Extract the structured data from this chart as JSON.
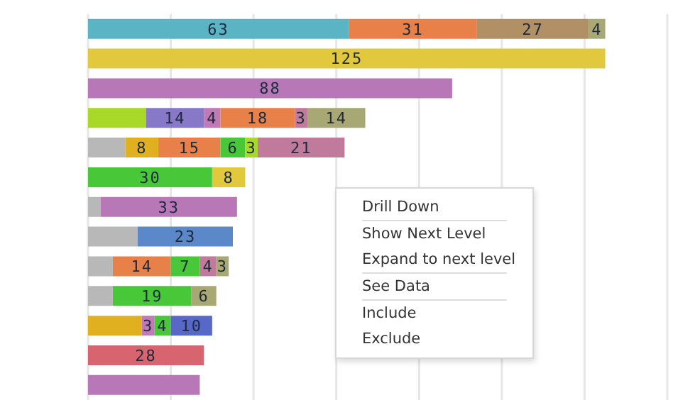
{
  "chart_data": {
    "type": "bar",
    "orientation": "horizontal",
    "stacked": true,
    "categories": [
      null,
      null,
      null,
      null,
      null,
      null,
      null,
      null,
      null,
      null,
      null,
      null,
      null
    ],
    "series": [
      {
        "values": [
          63,
          125,
          88,
          14,
          9,
          30,
          3,
          12,
          6,
          6,
          13,
          28,
          27
        ],
        "colors": [
          "#5ab4c4",
          "#e2c83c",
          "#b878b8",
          "#a8d828",
          "#b8b8b8",
          "#48c838",
          "#b8b8b8",
          "#b8b8b8",
          "#b8b8b8",
          "#b8b8b8",
          "#e0b020",
          "#d86470",
          "#b878b8"
        ],
        "value_labels": [
          "63",
          "125",
          "88",
          null,
          null,
          "30",
          null,
          null,
          null,
          null,
          null,
          "28",
          null
        ]
      },
      {
        "values": [
          31,
          null,
          null,
          14,
          8,
          8,
          33,
          23,
          14,
          19,
          3,
          null,
          null
        ],
        "colors": [
          "#e8804a",
          null,
          null,
          "#8878c8",
          "#e0b020",
          "#e2c83c",
          "#b878b8",
          "#5a88c8",
          "#e8804a",
          "#48c838",
          "#c07ab8",
          null,
          null
        ],
        "value_labels": [
          "31",
          null,
          null,
          "14",
          "8",
          "8",
          "33",
          "23",
          "14",
          "19",
          "3",
          null,
          null
        ]
      },
      {
        "values": [
          27,
          null,
          null,
          4,
          15,
          null,
          null,
          null,
          7,
          6,
          4,
          null,
          null
        ],
        "colors": [
          "#b09064",
          null,
          null,
          "#c07ab8",
          "#e8804a",
          null,
          null,
          null,
          "#48c838",
          "#a8a874",
          "#48c838",
          null,
          null
        ],
        "value_labels": [
          "27",
          null,
          null,
          "4",
          "15",
          null,
          null,
          null,
          "7",
          "6",
          "4",
          null,
          null
        ]
      },
      {
        "values": [
          4,
          null,
          null,
          18,
          6,
          null,
          null,
          null,
          4,
          null,
          10,
          null,
          null
        ],
        "colors": [
          "#a8a874",
          null,
          null,
          "#e8804a",
          "#48c838",
          null,
          null,
          null,
          "#c07a9c",
          null,
          "#5868c8",
          null,
          null
        ],
        "value_labels": [
          "4",
          null,
          null,
          "18",
          "6",
          null,
          null,
          null,
          "4",
          null,
          "10",
          null,
          null
        ]
      },
      {
        "values": [
          null,
          null,
          null,
          3,
          3,
          null,
          null,
          null,
          3,
          null,
          null,
          null,
          null
        ],
        "colors": [
          null,
          null,
          null,
          "#c07a9c",
          "#a8d828",
          null,
          null,
          null,
          "#a8a874",
          null,
          null,
          null,
          null
        ],
        "value_labels": [
          null,
          null,
          null,
          "3",
          "3",
          null,
          null,
          null,
          "3",
          null,
          null,
          null,
          null
        ]
      },
      {
        "values": [
          null,
          null,
          null,
          14,
          21,
          null,
          null,
          null,
          null,
          null,
          null,
          null,
          null
        ],
        "colors": [
          null,
          null,
          null,
          "#a8a874",
          "#c07a9c",
          null,
          null,
          null,
          null,
          null,
          null,
          null,
          null
        ],
        "value_labels": [
          null,
          null,
          null,
          "14",
          "21",
          null,
          null,
          null,
          null,
          null,
          null,
          null,
          null
        ]
      }
    ],
    "xlim": [
      0,
      140
    ],
    "grid": "x",
    "annotations": [
      "Drill Down",
      "Show Next Level",
      "Expand to next level",
      "See Data",
      "Include",
      "Exclude"
    ]
  }
}
